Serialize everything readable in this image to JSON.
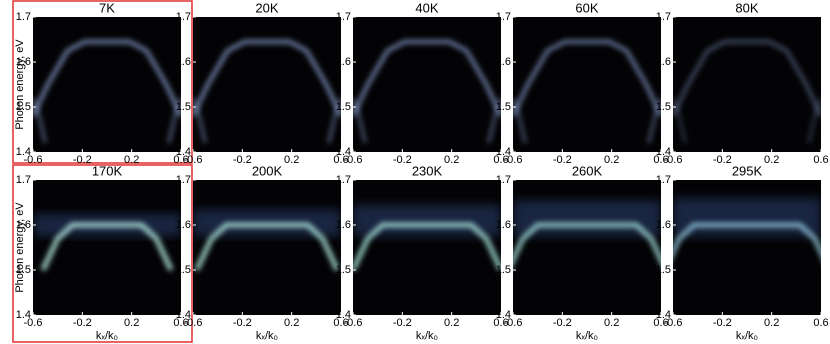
{
  "chart_data": [
    {
      "type": "heatmap",
      "title": "7K",
      "xlim": [
        -0.6,
        0.6
      ],
      "ylim": [
        1.4,
        1.7
      ],
      "xticks": [
        -0.6,
        -0.2,
        0.2,
        0.6
      ],
      "yticks": [
        1.4,
        1.5,
        1.6,
        1.7
      ],
      "ylabel": "Photon energy, eV"
    },
    {
      "type": "heatmap",
      "title": "20K",
      "xlim": [
        -0.6,
        0.6
      ],
      "ylim": [
        1.4,
        1.7
      ],
      "xticks": [
        -0.6,
        -0.2,
        0.2,
        0.6
      ],
      "yticks": [
        1.4,
        1.5,
        1.6,
        1.7
      ]
    },
    {
      "type": "heatmap",
      "title": "40K",
      "xlim": [
        -0.6,
        0.6
      ],
      "ylim": [
        1.4,
        1.7
      ],
      "xticks": [
        -0.6,
        -0.2,
        0.2,
        0.6
      ],
      "yticks": [
        1.4,
        1.5,
        1.6,
        1.7
      ]
    },
    {
      "type": "heatmap",
      "title": "60K",
      "xlim": [
        -0.6,
        0.6
      ],
      "ylim": [
        1.4,
        1.7
      ],
      "xticks": [
        -0.6,
        -0.2,
        0.2,
        0.6
      ],
      "yticks": [
        1.4,
        1.5,
        1.6,
        1.7
      ]
    },
    {
      "type": "heatmap",
      "title": "80K",
      "xlim": [
        -0.6,
        0.6
      ],
      "ylim": [
        1.4,
        1.7
      ],
      "xticks": [
        -0.6,
        -0.2,
        0.2,
        0.6
      ],
      "yticks": [
        1.4,
        1.5,
        1.6,
        1.7
      ]
    },
    {
      "type": "heatmap",
      "title": "170K",
      "xlim": [
        -0.6,
        0.6
      ],
      "ylim": [
        1.4,
        1.7
      ],
      "xticks": [
        -0.6,
        -0.2,
        0.2,
        0.6
      ],
      "yticks": [
        1.4,
        1.5,
        1.6,
        1.7
      ],
      "ylabel": "Photon energy, eV",
      "xlabel": "kₓ/k₀"
    },
    {
      "type": "heatmap",
      "title": "200K",
      "xlim": [
        -0.6,
        0.6
      ],
      "ylim": [
        1.4,
        1.7
      ],
      "xticks": [
        -0.6,
        -0.2,
        0.2,
        0.6
      ],
      "yticks": [
        1.4,
        1.5,
        1.6,
        1.7
      ],
      "xlabel": "kₓ/k₀"
    },
    {
      "type": "heatmap",
      "title": "230K",
      "xlim": [
        -0.6,
        0.6
      ],
      "ylim": [
        1.4,
        1.7
      ],
      "xticks": [
        -0.6,
        -0.2,
        0.2,
        0.6
      ],
      "yticks": [
        1.4,
        1.5,
        1.6,
        1.7
      ],
      "xlabel": "kₓ/k₀"
    },
    {
      "type": "heatmap",
      "title": "260K",
      "xlim": [
        -0.6,
        0.6
      ],
      "ylim": [
        1.4,
        1.7
      ],
      "xticks": [
        -0.6,
        -0.2,
        0.2,
        0.6
      ],
      "yticks": [
        1.4,
        1.5,
        1.6,
        1.7
      ],
      "xlabel": "kₓ/k₀"
    },
    {
      "type": "heatmap",
      "title": "295K",
      "xlim": [
        -0.6,
        0.6
      ],
      "ylim": [
        1.4,
        1.7
      ],
      "xticks": [
        -0.6,
        -0.2,
        0.2,
        0.6
      ],
      "yticks": [
        1.4,
        1.5,
        1.6,
        1.7
      ],
      "xlabel": "kₓ/k₀"
    }
  ]
}
